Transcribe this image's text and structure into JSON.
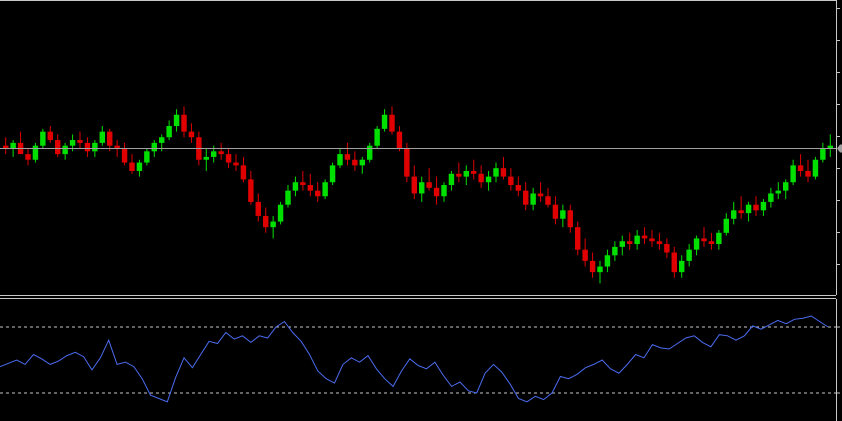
{
  "colors": {
    "background": "#000000",
    "up_candle": "#00e000",
    "down_candle": "#e00000",
    "frame": "#c8c8c8",
    "price_line": "#a0a0a0",
    "price_marker": "#a0a0a0",
    "oscillator": "#4a6cf0",
    "level_line": "#c8c8c8"
  },
  "chart_data": [
    {
      "type": "candlestick",
      "title": "",
      "xlabel": "",
      "ylabel": "",
      "ylim": [
        0,
        100
      ],
      "grid": false,
      "current_price": 50,
      "candles": [
        [
          51,
          54,
          48,
          50
        ],
        [
          50,
          53,
          47,
          52
        ],
        [
          52,
          56,
          49,
          48
        ],
        [
          48,
          50,
          44,
          46
        ],
        [
          46,
          52,
          45,
          51
        ],
        [
          51,
          57,
          50,
          56
        ],
        [
          56,
          58,
          52,
          53
        ],
        [
          53,
          55,
          47,
          48
        ],
        [
          48,
          52,
          46,
          51
        ],
        [
          51,
          55,
          49,
          53
        ],
        [
          53,
          56,
          50,
          52
        ],
        [
          52,
          54,
          47,
          49
        ],
        [
          49,
          53,
          47,
          52
        ],
        [
          52,
          58,
          51,
          56
        ],
        [
          56,
          57,
          49,
          51
        ],
        [
          51,
          53,
          47,
          50
        ],
        [
          50,
          52,
          44,
          45
        ],
        [
          45,
          48,
          41,
          42
        ],
        [
          42,
          46,
          40,
          45
        ],
        [
          45,
          50,
          44,
          49
        ],
        [
          49,
          53,
          47,
          52
        ],
        [
          52,
          55,
          49,
          54
        ],
        [
          54,
          60,
          53,
          58
        ],
        [
          58,
          64,
          56,
          62
        ],
        [
          62,
          65,
          54,
          56
        ],
        [
          56,
          59,
          52,
          54
        ],
        [
          54,
          56,
          44,
          46
        ],
        [
          46,
          50,
          42,
          47
        ],
        [
          47,
          51,
          45,
          49
        ],
        [
          49,
          52,
          46,
          48
        ],
        [
          48,
          50,
          43,
          45
        ],
        [
          45,
          48,
          42,
          44
        ],
        [
          44,
          47,
          38,
          39
        ],
        [
          39,
          42,
          30,
          31
        ],
        [
          31,
          34,
          24,
          26
        ],
        [
          26,
          29,
          20,
          22
        ],
        [
          22,
          26,
          18,
          24
        ],
        [
          24,
          31,
          23,
          30
        ],
        [
          30,
          37,
          29,
          35
        ],
        [
          35,
          40,
          33,
          38
        ],
        [
          38,
          42,
          35,
          37
        ],
        [
          37,
          41,
          33,
          35
        ],
        [
          35,
          38,
          31,
          33
        ],
        [
          33,
          39,
          32,
          38
        ],
        [
          38,
          45,
          37,
          44
        ],
        [
          44,
          50,
          43,
          48
        ],
        [
          48,
          52,
          44,
          46
        ],
        [
          46,
          49,
          42,
          44
        ],
        [
          44,
          47,
          41,
          46
        ],
        [
          46,
          52,
          45,
          51
        ],
        [
          51,
          58,
          50,
          57
        ],
        [
          57,
          64,
          56,
          62
        ],
        [
          62,
          65,
          55,
          56
        ],
        [
          56,
          58,
          49,
          50
        ],
        [
          50,
          52,
          38,
          40
        ],
        [
          40,
          44,
          32,
          34
        ],
        [
          34,
          40,
          31,
          38
        ],
        [
          38,
          43,
          35,
          36
        ],
        [
          36,
          40,
          30,
          33
        ],
        [
          33,
          38,
          31,
          37
        ],
        [
          37,
          42,
          35,
          41
        ],
        [
          41,
          45,
          38,
          40
        ],
        [
          40,
          44,
          37,
          42
        ],
        [
          42,
          46,
          39,
          41
        ],
        [
          41,
          44,
          36,
          38
        ],
        [
          38,
          42,
          35,
          40
        ],
        [
          40,
          45,
          38,
          43
        ],
        [
          43,
          47,
          39,
          40
        ],
        [
          40,
          43,
          35,
          37
        ],
        [
          37,
          40,
          33,
          35
        ],
        [
          35,
          38,
          28,
          30
        ],
        [
          30,
          36,
          28,
          34
        ],
        [
          34,
          38,
          31,
          33
        ],
        [
          33,
          36,
          29,
          30
        ],
        [
          30,
          33,
          23,
          25
        ],
        [
          25,
          30,
          22,
          28
        ],
        [
          28,
          30,
          20,
          22
        ],
        [
          22,
          24,
          12,
          14
        ],
        [
          14,
          18,
          8,
          10
        ],
        [
          10,
          13,
          4,
          6
        ],
        [
          6,
          10,
          2,
          8
        ],
        [
          8,
          14,
          6,
          12
        ],
        [
          12,
          17,
          10,
          15
        ],
        [
          15,
          19,
          12,
          17
        ],
        [
          17,
          20,
          14,
          16
        ],
        [
          16,
          21,
          14,
          19
        ],
        [
          19,
          22,
          16,
          18
        ],
        [
          18,
          21,
          15,
          17
        ],
        [
          17,
          20,
          14,
          16
        ],
        [
          16,
          18,
          11,
          13
        ],
        [
          13,
          15,
          4,
          6
        ],
        [
          6,
          12,
          4,
          10
        ],
        [
          10,
          16,
          8,
          14
        ],
        [
          14,
          19,
          12,
          18
        ],
        [
          18,
          22,
          15,
          17
        ],
        [
          17,
          20,
          14,
          16
        ],
        [
          16,
          21,
          14,
          20
        ],
        [
          20,
          27,
          19,
          25
        ],
        [
          25,
          31,
          23,
          28
        ],
        [
          28,
          33,
          25,
          27
        ],
        [
          27,
          31,
          24,
          30
        ],
        [
          30,
          33,
          26,
          28
        ],
        [
          28,
          32,
          26,
          31
        ],
        [
          31,
          36,
          29,
          34
        ],
        [
          34,
          38,
          32,
          35
        ],
        [
          35,
          39,
          32,
          38
        ],
        [
          38,
          46,
          37,
          44
        ],
        [
          44,
          48,
          40,
          42
        ],
        [
          42,
          46,
          38,
          40
        ],
        [
          40,
          47,
          39,
          46
        ],
        [
          46,
          52,
          45,
          50
        ],
        [
          50,
          55,
          47,
          51
        ]
      ]
    },
    {
      "type": "line",
      "title": "",
      "xlabel": "",
      "ylabel": "",
      "ylim": [
        0,
        100
      ],
      "levels": [
        80,
        20
      ],
      "grid": false,
      "series": [
        {
          "values": [
            44,
            47,
            50,
            46,
            55,
            51,
            46,
            49,
            54,
            57,
            53,
            41,
            52,
            68,
            46,
            48,
            44,
            33,
            18,
            15,
            12,
            34,
            52,
            43,
            55,
            67,
            65,
            75,
            69,
            72,
            66,
            72,
            70,
            80,
            85,
            75,
            67,
            55,
            40,
            33,
            29,
            46,
            52,
            48,
            54,
            42,
            33,
            26,
            40,
            51,
            45,
            42,
            48,
            36,
            26,
            30,
            22,
            20,
            38,
            46,
            39,
            28,
            15,
            12,
            17,
            14,
            20,
            35,
            33,
            37,
            43,
            46,
            50,
            42,
            38,
            46,
            55,
            52,
            64,
            61,
            60,
            65,
            70,
            72,
            66,
            62,
            73,
            72,
            68,
            72,
            81,
            78,
            82,
            86,
            83,
            87,
            88,
            90,
            85,
            80
          ]
        }
      ]
    }
  ]
}
